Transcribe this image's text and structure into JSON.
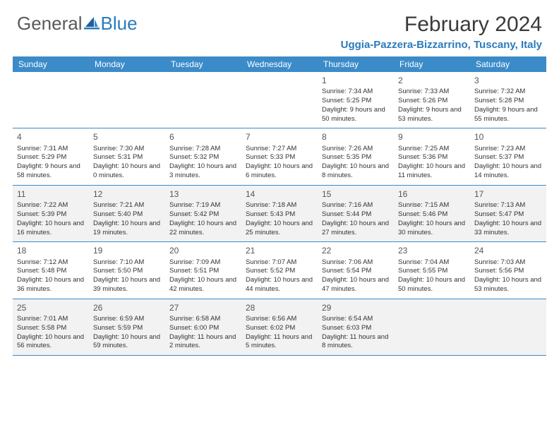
{
  "brand": {
    "text1": "General",
    "text2": "Blue"
  },
  "title": "February 2024",
  "location": "Uggia-Pazzera-Bizzarrino, Tuscany, Italy",
  "colors": {
    "header_bar": "#3b8bc9",
    "brand_blue": "#2b7bbd",
    "text": "#333333",
    "shade": "#f2f2f2",
    "background": "#ffffff"
  },
  "dow": [
    "Sunday",
    "Monday",
    "Tuesday",
    "Wednesday",
    "Thursday",
    "Friday",
    "Saturday"
  ],
  "weeks": [
    [
      {
        "day": null
      },
      {
        "day": null
      },
      {
        "day": null
      },
      {
        "day": null
      },
      {
        "day": "1",
        "sunrise": "Sunrise: 7:34 AM",
        "sunset": "Sunset: 5:25 PM",
        "daylight": "Daylight: 9 hours and 50 minutes."
      },
      {
        "day": "2",
        "sunrise": "Sunrise: 7:33 AM",
        "sunset": "Sunset: 5:26 PM",
        "daylight": "Daylight: 9 hours and 53 minutes."
      },
      {
        "day": "3",
        "sunrise": "Sunrise: 7:32 AM",
        "sunset": "Sunset: 5:28 PM",
        "daylight": "Daylight: 9 hours and 55 minutes."
      }
    ],
    [
      {
        "day": "4",
        "sunrise": "Sunrise: 7:31 AM",
        "sunset": "Sunset: 5:29 PM",
        "daylight": "Daylight: 9 hours and 58 minutes."
      },
      {
        "day": "5",
        "sunrise": "Sunrise: 7:30 AM",
        "sunset": "Sunset: 5:31 PM",
        "daylight": "Daylight: 10 hours and 0 minutes."
      },
      {
        "day": "6",
        "sunrise": "Sunrise: 7:28 AM",
        "sunset": "Sunset: 5:32 PM",
        "daylight": "Daylight: 10 hours and 3 minutes."
      },
      {
        "day": "7",
        "sunrise": "Sunrise: 7:27 AM",
        "sunset": "Sunset: 5:33 PM",
        "daylight": "Daylight: 10 hours and 6 minutes."
      },
      {
        "day": "8",
        "sunrise": "Sunrise: 7:26 AM",
        "sunset": "Sunset: 5:35 PM",
        "daylight": "Daylight: 10 hours and 8 minutes."
      },
      {
        "day": "9",
        "sunrise": "Sunrise: 7:25 AM",
        "sunset": "Sunset: 5:36 PM",
        "daylight": "Daylight: 10 hours and 11 minutes."
      },
      {
        "day": "10",
        "sunrise": "Sunrise: 7:23 AM",
        "sunset": "Sunset: 5:37 PM",
        "daylight": "Daylight: 10 hours and 14 minutes."
      }
    ],
    [
      {
        "day": "11",
        "sunrise": "Sunrise: 7:22 AM",
        "sunset": "Sunset: 5:39 PM",
        "daylight": "Daylight: 10 hours and 16 minutes.",
        "shade": true
      },
      {
        "day": "12",
        "sunrise": "Sunrise: 7:21 AM",
        "sunset": "Sunset: 5:40 PM",
        "daylight": "Daylight: 10 hours and 19 minutes.",
        "shade": true
      },
      {
        "day": "13",
        "sunrise": "Sunrise: 7:19 AM",
        "sunset": "Sunset: 5:42 PM",
        "daylight": "Daylight: 10 hours and 22 minutes.",
        "shade": true
      },
      {
        "day": "14",
        "sunrise": "Sunrise: 7:18 AM",
        "sunset": "Sunset: 5:43 PM",
        "daylight": "Daylight: 10 hours and 25 minutes.",
        "shade": true
      },
      {
        "day": "15",
        "sunrise": "Sunrise: 7:16 AM",
        "sunset": "Sunset: 5:44 PM",
        "daylight": "Daylight: 10 hours and 27 minutes.",
        "shade": true
      },
      {
        "day": "16",
        "sunrise": "Sunrise: 7:15 AM",
        "sunset": "Sunset: 5:46 PM",
        "daylight": "Daylight: 10 hours and 30 minutes.",
        "shade": true
      },
      {
        "day": "17",
        "sunrise": "Sunrise: 7:13 AM",
        "sunset": "Sunset: 5:47 PM",
        "daylight": "Daylight: 10 hours and 33 minutes.",
        "shade": true
      }
    ],
    [
      {
        "day": "18",
        "sunrise": "Sunrise: 7:12 AM",
        "sunset": "Sunset: 5:48 PM",
        "daylight": "Daylight: 10 hours and 36 minutes."
      },
      {
        "day": "19",
        "sunrise": "Sunrise: 7:10 AM",
        "sunset": "Sunset: 5:50 PM",
        "daylight": "Daylight: 10 hours and 39 minutes."
      },
      {
        "day": "20",
        "sunrise": "Sunrise: 7:09 AM",
        "sunset": "Sunset: 5:51 PM",
        "daylight": "Daylight: 10 hours and 42 minutes."
      },
      {
        "day": "21",
        "sunrise": "Sunrise: 7:07 AM",
        "sunset": "Sunset: 5:52 PM",
        "daylight": "Daylight: 10 hours and 44 minutes."
      },
      {
        "day": "22",
        "sunrise": "Sunrise: 7:06 AM",
        "sunset": "Sunset: 5:54 PM",
        "daylight": "Daylight: 10 hours and 47 minutes."
      },
      {
        "day": "23",
        "sunrise": "Sunrise: 7:04 AM",
        "sunset": "Sunset: 5:55 PM",
        "daylight": "Daylight: 10 hours and 50 minutes."
      },
      {
        "day": "24",
        "sunrise": "Sunrise: 7:03 AM",
        "sunset": "Sunset: 5:56 PM",
        "daylight": "Daylight: 10 hours and 53 minutes."
      }
    ],
    [
      {
        "day": "25",
        "sunrise": "Sunrise: 7:01 AM",
        "sunset": "Sunset: 5:58 PM",
        "daylight": "Daylight: 10 hours and 56 minutes.",
        "shade": true
      },
      {
        "day": "26",
        "sunrise": "Sunrise: 6:59 AM",
        "sunset": "Sunset: 5:59 PM",
        "daylight": "Daylight: 10 hours and 59 minutes.",
        "shade": true
      },
      {
        "day": "27",
        "sunrise": "Sunrise: 6:58 AM",
        "sunset": "Sunset: 6:00 PM",
        "daylight": "Daylight: 11 hours and 2 minutes.",
        "shade": true
      },
      {
        "day": "28",
        "sunrise": "Sunrise: 6:56 AM",
        "sunset": "Sunset: 6:02 PM",
        "daylight": "Daylight: 11 hours and 5 minutes.",
        "shade": true
      },
      {
        "day": "29",
        "sunrise": "Sunrise: 6:54 AM",
        "sunset": "Sunset: 6:03 PM",
        "daylight": "Daylight: 11 hours and 8 minutes.",
        "shade": true
      },
      {
        "day": null,
        "shade": true
      },
      {
        "day": null,
        "shade": true
      }
    ]
  ]
}
